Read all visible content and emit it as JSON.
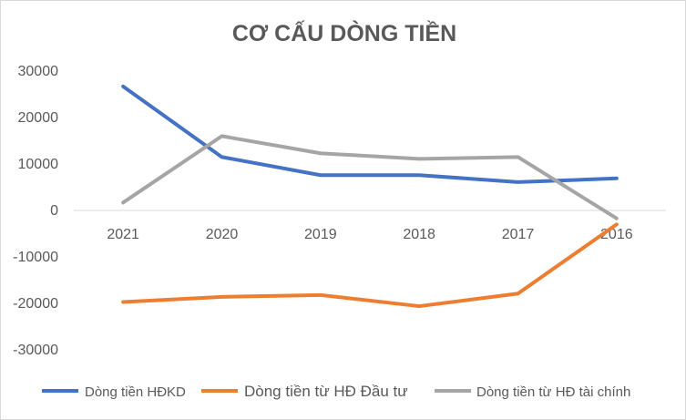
{
  "chart_data": {
    "type": "line",
    "title": "CƠ CẤU DÒNG TIỀN",
    "xlabel": "",
    "ylabel": "",
    "categories": [
      "2021",
      "2020",
      "2019",
      "2018",
      "2017",
      "2016"
    ],
    "ylim": [
      -30000,
      30000
    ],
    "yticks": [
      "30000",
      "20000",
      "10000",
      "0",
      "-10000",
      "-20000",
      "-30000"
    ],
    "grid": false,
    "legend_position": "bottom",
    "series": [
      {
        "name": "Dòng tiền HĐKD",
        "color": "#4472c4",
        "values": [
          26700,
          11500,
          7600,
          7600,
          6100,
          6900
        ]
      },
      {
        "name": "Dòng tiền từ HĐ Đầu tư",
        "color": "#ed7d31",
        "values": [
          -19700,
          -18600,
          -18200,
          -20600,
          -17900,
          -3000
        ]
      },
      {
        "name": "Dòng tiền từ HĐ tài chính",
        "color": "#a5a5a5",
        "values": [
          1700,
          16000,
          12300,
          11100,
          11500,
          -1700
        ]
      }
    ]
  }
}
